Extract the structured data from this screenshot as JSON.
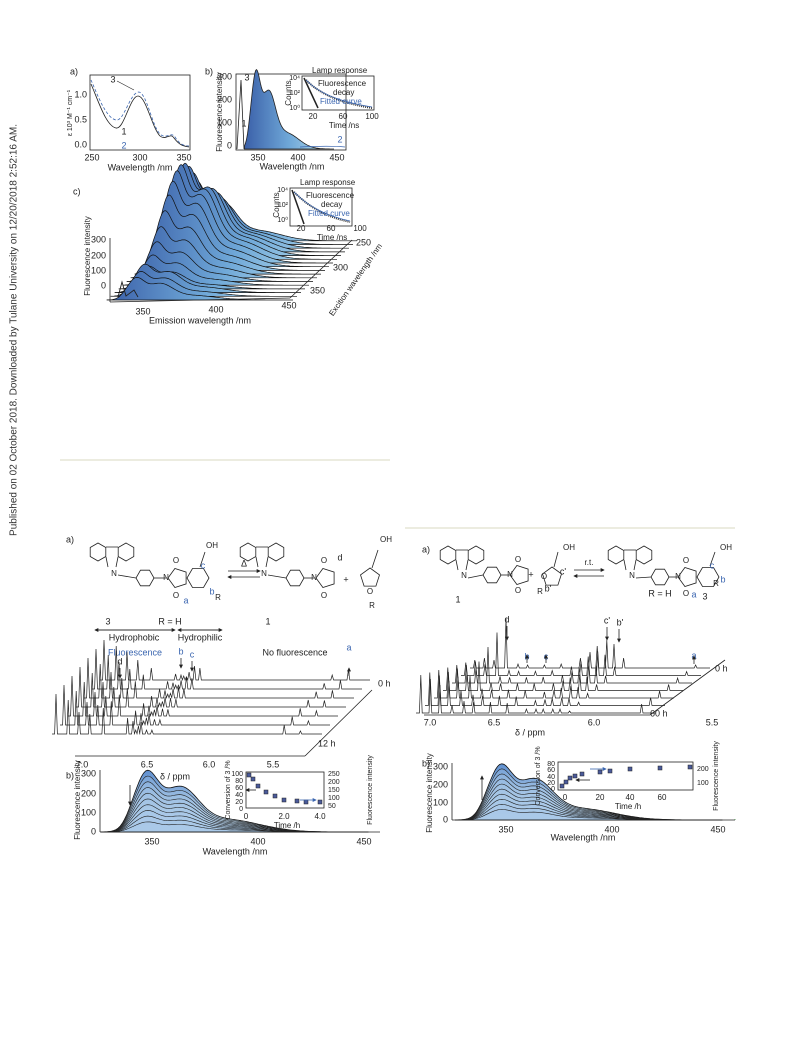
{
  "side_note": "Published on 02 October 2018. Downloaded by Tulane University on 12/20/2018 2:52:16 AM.",
  "top_figure": {
    "a": {
      "label": "a)",
      "x_ticks": [
        "250",
        "300",
        "350"
      ],
      "y_ticks": [
        "0.0",
        "0.5",
        "1.0"
      ],
      "x_title": "Wavelength /nm",
      "y_title": "ε 10³ M⁻¹ cm⁻¹",
      "curves": [
        "3",
        "2",
        "1"
      ]
    },
    "b": {
      "label": "b)",
      "y_ticks": [
        "0",
        "100",
        "200",
        "300"
      ],
      "x_ticks": [
        "350",
        "400",
        "450"
      ],
      "x_title": "Wavelength /nm",
      "y_title": "Fluorescence intensity",
      "curves": [
        "3",
        "1",
        "2"
      ],
      "inset": {
        "legend": [
          "Lamp response",
          "Fluorescence",
          "decay",
          "Fitted curve"
        ],
        "y_title": "Counts",
        "y_ticks": [
          "10⁴",
          "10²",
          "10⁰"
        ],
        "x_ticks": [
          "20",
          "60",
          "100"
        ],
        "x_title": "Time /ns"
      }
    },
    "c": {
      "label": "c)",
      "y_ticks": [
        "300",
        "200",
        "100",
        "0"
      ],
      "y_title": "Fluorescence intensity",
      "x_ticks": [
        "350",
        "400",
        "450"
      ],
      "x_title": "Emission wavelength /nm",
      "z_ticks": [
        "250",
        "300",
        "350"
      ],
      "z_title": "Excition wavelength /nm",
      "inset": {
        "legend": [
          "Lamp response",
          "Fluorescence",
          "decay",
          "Fitted curve"
        ],
        "y_title": "Counts",
        "y_ticks": [
          "10⁴",
          "10²",
          "10⁰"
        ],
        "x_ticks": [
          "20",
          "60",
          "100"
        ],
        "x_title": "Time /ns"
      }
    }
  },
  "left_figure": {
    "scheme": {
      "label": "a)",
      "compounds": [
        "3",
        "1"
      ],
      "r_note": "R = H",
      "arrow": "Δ",
      "plus": "+",
      "sites": [
        "c",
        "a",
        "b",
        "d"
      ],
      "substituents": [
        "OH",
        "R",
        "OH",
        "R"
      ],
      "atoms": [
        "N",
        "N",
        "O",
        "O",
        "N",
        "N",
        "O",
        "O",
        "O"
      ],
      "regions": [
        "Hydrophobic",
        "Hydrophilic"
      ],
      "states": [
        "Fluorescence",
        "No fluorescence"
      ]
    },
    "nmr": {
      "x_ticks": [
        "7.0",
        "6.5",
        "6.0",
        "5.5"
      ],
      "x_title": "δ / ppm",
      "peaks": [
        "d",
        "b",
        "c",
        "a"
      ],
      "times": [
        "0 h",
        "12 h"
      ]
    },
    "emission": {
      "label": "b)",
      "y_ticks": [
        "300",
        "200",
        "100",
        "0"
      ],
      "x_ticks": [
        "350",
        "400",
        "450"
      ],
      "x_title": "Wavelength /nm",
      "y_title": "Fluorescence intensity",
      "inset": {
        "y_title": "Conversion of 3 /%",
        "y_ticks": [
          "100",
          "80",
          "60",
          "40",
          "20",
          "0"
        ],
        "y2_title": "Fluorescence intensity",
        "y2_ticks": [
          "250",
          "200",
          "150",
          "100",
          "50"
        ],
        "x_ticks": [
          "0",
          "2.0",
          "4.0"
        ],
        "x_title": "Time /h"
      }
    }
  },
  "right_figure": {
    "scheme": {
      "label": "a)",
      "compounds": [
        "1",
        "3"
      ],
      "r_note": "R = H",
      "arrow": "r.t.",
      "plus": "+",
      "sites": [
        "c'",
        "b'",
        "c",
        "a",
        "b"
      ],
      "substituents": [
        "OH",
        "R",
        "OH",
        "R"
      ],
      "atoms": [
        "N",
        "N",
        "O",
        "O",
        "O",
        "N",
        "N",
        "O",
        "O"
      ]
    },
    "nmr": {
      "x_ticks": [
        "7.0",
        "6.5",
        "6.0",
        "5.5"
      ],
      "x_title": "δ / ppm",
      "peaks": [
        "d",
        "b",
        "c",
        "c'",
        "b'",
        "a"
      ],
      "times": [
        "0 h",
        "60 h"
      ]
    },
    "emission": {
      "label": "b)",
      "y_ticks": [
        "300",
        "200",
        "100",
        "0"
      ],
      "x_ticks": [
        "350",
        "400",
        "450"
      ],
      "x_title": "Wavelength /nm",
      "y_title": "Fluorescence intensity",
      "inset": {
        "y_title": "Conversion of 3 /%",
        "y_ticks": [
          "80",
          "60",
          "40",
          "20",
          "0"
        ],
        "y2_title": "Fluorescence intensity",
        "y2_ticks": [
          "200",
          "100"
        ],
        "x_ticks": [
          "0",
          "20",
          "40",
          "60"
        ],
        "x_title": "Time /h"
      }
    }
  }
}
